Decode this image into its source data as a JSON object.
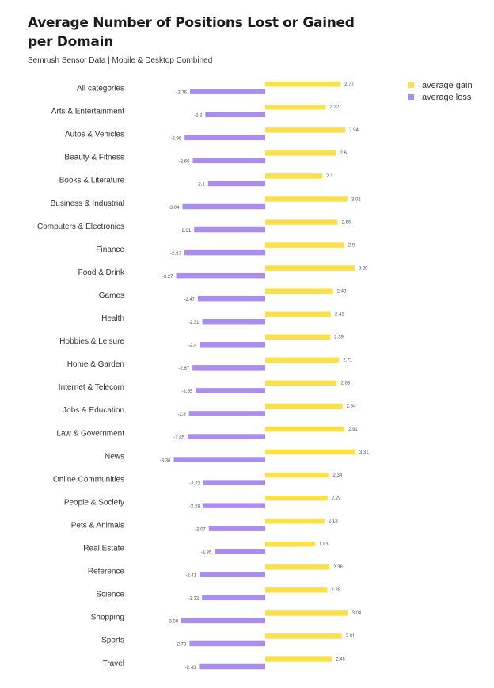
{
  "chart": {
    "title": "Average Number of Positions Lost or Gained per Domain",
    "subtitle": "Semrush Sensor Data | Mobile & Desktop Combined"
  },
  "colors": {
    "gain": "#fbe04a",
    "loss": "#a98ef0"
  },
  "legend": {
    "gain_label": "average gain",
    "loss_label": "average loss"
  },
  "chart_data": {
    "type": "bar",
    "orientation": "horizontal",
    "title": "Average Number of Positions Lost or Gained per Domain",
    "subtitle": "Semrush Sensor Data | Mobile & Desktop Combined",
    "xlabel": "",
    "ylabel": "",
    "legend_position": "top-right",
    "grid": false,
    "categories": [
      "All categories",
      "Arts & Entertainment",
      "Autos & Vehicles",
      "Beauty & Fitness",
      "Books & Literature",
      "Business & Industrial",
      "Computers & Electronics",
      "Finance",
      "Food & Drink",
      "Games",
      "Health",
      "Hobbies & Leisure",
      "Home & Garden",
      "Internet & Telecom",
      "Jobs & Education",
      "Law & Government",
      "News",
      "Online Communities",
      "People & Society",
      "Pets & Animals",
      "Real Estate",
      "Reference",
      "Science",
      "Shopping",
      "Sports",
      "Travel"
    ],
    "series": [
      {
        "name": "average gain",
        "values": [
          2.77,
          2.22,
          2.94,
          2.6,
          2.1,
          3.02,
          2.66,
          2.9,
          3.28,
          2.49,
          2.41,
          2.39,
          2.71,
          2.63,
          2.84,
          2.91,
          3.31,
          2.34,
          2.29,
          2.18,
          1.83,
          2.36,
          2.28,
          3.04,
          2.81,
          2.45
        ]
      },
      {
        "name": "average loss",
        "values": [
          -2.76,
          -2.2,
          -2.96,
          -2.66,
          -2.1,
          -3.04,
          -2.61,
          -2.97,
          -3.27,
          -2.47,
          -2.31,
          -2.4,
          -2.67,
          -2.55,
          -2.8,
          -2.85,
          -3.36,
          -2.27,
          -2.28,
          -2.07,
          -1.85,
          -2.41,
          -2.32,
          -3.08,
          -2.78,
          -2.43
        ]
      }
    ],
    "xlim": [
      -3.5,
      3.5
    ]
  }
}
